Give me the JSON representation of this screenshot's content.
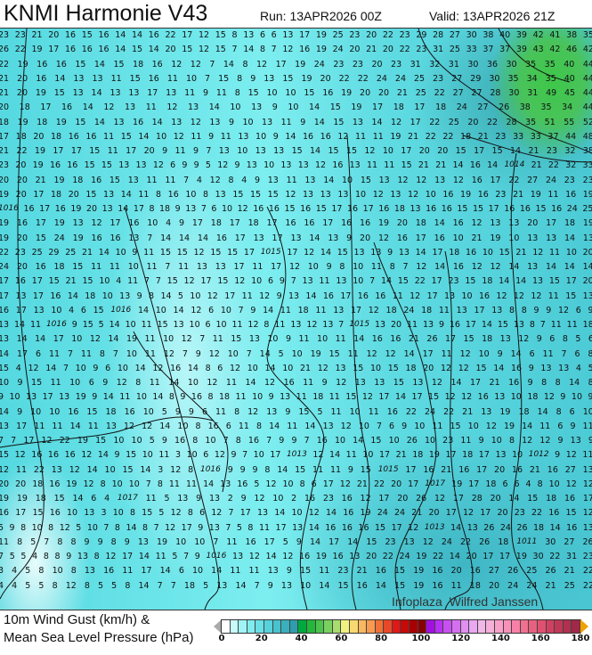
{
  "header": {
    "title": "KNMI Harmonie V43",
    "run": "Run: 13APR2026 00Z",
    "valid": "Valid: 13APR2026 21Z"
  },
  "legend": {
    "line1": "10m Wind Gust (km/h) &",
    "line2": "Mean Sea Level Pressure (hPa)",
    "ticks": [
      "0",
      "20",
      "40",
      "60",
      "80",
      "100",
      "120",
      "140",
      "160",
      "180"
    ],
    "colors": [
      "#ffffff",
      "#c8fbfb",
      "#a0f4f6",
      "#80ecf0",
      "#6ae0e6",
      "#58d2da",
      "#48c2cc",
      "#3ab0bc",
      "#2e9eac",
      "#00a840",
      "#22b83a",
      "#4ac44a",
      "#78d060",
      "#a8dc70",
      "#f0f080",
      "#f8d870",
      "#f8b860",
      "#f89a50",
      "#f07038",
      "#e84828",
      "#e01818",
      "#c80808",
      "#a80000",
      "#880000",
      "#a010e0",
      "#b830f0",
      "#c850f0",
      "#d470f0",
      "#e090f0",
      "#eaa8f0",
      "#f0b8e8",
      "#f4b0d8",
      "#f8a0c8",
      "#f890b8",
      "#f880a8",
      "#f07090",
      "#e86080",
      "#e05070",
      "#d04060",
      "#c03858",
      "#b03050",
      "#a02848"
    ],
    "under_color": "#aaaaaa",
    "over_color": "#f0a000"
  },
  "credit": "Infoplaza  Wilfred Janssen",
  "isobars": [
    "1015",
    "1016",
    "1016",
    "1016",
    "1016",
    "1017",
    "1015",
    "1014",
    "1013",
    "1015",
    "1017",
    "1012",
    "1011",
    "1016",
    "1013"
  ],
  "wind_gust_rows": [
    "23 23 21 20 16 15 16 14 14 16 22 17 12 15 8 13 6 6 13 17 19 25 23 20 22 23 29 28 27 30 38 40 39 42 41 38 35",
    "26 22 19 17 16 16 16 14 15 14 20 15 12 15 7 14 8 7 12 16 19 24 20 21 20 22 23 31 25 33 37 37 39 43 42 46 42",
    "22 19 16 16 15 14 15 18 16 12 12 7 14 8 12 17 19 24 23 23 20 23 31 32 31 30 36 30 35 35 40 44",
    "21 20 16 14 13 13 11 15 16 11 10 7 15 8 9 13 15 19 20 22 22 24 24 25 23 27 29 30 35 34 35 40 44",
    "21 20 19 15 13 14 13 13 17 13 11 9 11 8 15 10 10 15 16 19 20 20 21 25 22 27 27 28 30 31 49 45 44",
    "20 18 17 16 14 12 13 11 12 13 14 10 13 9 10 14 15 19 17 18 17 18 24 27 26 38 35 34 44",
    "18 19 18 19 15 14 13 16 14 13 12 13 9 10 13 11 9 14 15 13 14 12 17 22 25 20 22 28 35 51 55 52",
    "17 18 20 18 16 16 11 15 14 10 12 11 9 11 13 10 9 14 16 16 12 11 11 19 21 22 22 18 21 23 33 33 37 44 48",
    "21 22 19 17 17 15 11 17 20 9 11 9 7 13 10 13 13 15 14 15 15 12 10 17 20 20 15 17 15 14 21 23 32 38",
    "23 20 19 16 16 15 15 13 13 12 6 9 9 5 12 9 13 10 13 13 12 16 13 11 11 15 21 21 14 16 14 21 22 32 33",
    "20 20 21 19 18 16 15 13 11 11 7 4 12 8 4 9 13 11 13 14 10 15 13 12 12 13 12 16 17 22 27 24 23 23",
    "19 20 17 18 20 15 13 14 11 8 16 10 8 13 15 15 15 12 13 13 13 10 12 13 12 10 16 19 16 23 21 19 11 16 19",
    "16 17 16 19 20 13 14 17 8 18 9 13 7 6 10 12 16 16 15 16 15 17 16 17 16 18 13 16 16 15 15 17 16 16 15 16 24 25",
    "19 16 17 19 13 12 17 16 10 4 9 17 18 17 18 17 16 16 17 16 16 19 20 18 14 16 12 13 13 20 17 18 19",
    "19 20 15 24 19 16 16 13 7 14 14 14 16 17 13 17 13 14 13 9 20 12 16 17 16 10 21 19 10 13 13 14 13",
    "22 23 25 29 25 21 14 10 9 11 15 15 12 15 15 17 17 12 14 15 13 13 9 13 14 17 18 16 10 15 21 12 11 10 20",
    "24 20 16 18 15 11 11 10 11 7 11 13 13 17 11 17 12 10 9 8 10 11 8 7 12 14 16 12 12 14 13 14 14 14",
    "17 16 17 15 21 15 10 4 11 7 7 15 12 17 15 12 10 6 9 7 13 11 13 10 7 14 15 22 17 23 15 18 14 14 13 15 17 20",
    "17 13 17 16 14 18 10 13 9 8 14 5 10 12 17 11 12 9 13 14 16 17 16 16 11 12 17 13 10 16 12 12 12 11 15 13",
    "16 17 13 10 4 6 15 14 10 14 12 6 10 7 9 14 11 18 11 13 17 12 18 24 18 11 13 17 13 8 8 9 9 12 6 9",
    "13 14 11 9 15 5 14 10 11 15 13 10 6 10 11 12 8 11 13 12 13 7 13 20 11 13 9 16 17 14 15 13 8 7 11 11 18",
    "13 14 14 17 10 12 14 19 11 10 12 7 11 15 13 10 9 11 10 11 14 16 16 21 26 17 15 18 13 12 9 6 8 5 6",
    "14 17 6 11 7 11 8 7 10 11 12 7 9 12 10 7 14 5 10 19 15 11 12 12 14 17 11 12 10 9 14 6 11 7 6 8",
    "15 4 12 14 7 10 9 6 10 14 12 16 14 8 6 12 10 14 10 21 12 13 15 10 15 18 20 12 12 15 14 16 9 13 13 4 5",
    "10 9 15 11 10 6 9 12 8 11 14 10 12 11 14 12 16 11 9 12 13 13 15 13 12 14 17 21 16 9 8 8 14 8",
    "9 10 13 17 13 19 9 14 11 10 14 8 9 16 8 18 11 10 9 13 11 18 11 15 12 17 14 17 15 12 12 16 13 10 18 12 9 10 9",
    "14 9 10 10 16 15 18 16 10 5 9 9 6 11 8 12 13 9 15 5 11 10 11 16 22 24 22 21 13 19 18 14 8 6 10",
    "13 17 11 11 14 11 13 12 12 14 10 8 16 6 11 8 14 11 14 13 12 10 7 6 9 10 11 15 10 12 19 14 11 6 9 11",
    "7 7 17 12 22 19 15 10 10 5 9 16 8 10 7 8 16 7 9 9 7 16 10 14 15 10 26 10 23 11 9 10 8 12 12 9 13 9",
    "15 12 16 16 16 12 14 9 15 10 11 3 10 6 12 9 7 10 17 12 14 11 10 17 21 18 19 17 18 17 13 10 9 12 11",
    "12 11 22 13 12 14 10 15 14 3 12 8 9 9 9 8 14 15 11 11 9 15 17 16 21 16 17 20 16 21 16 27 13",
    "20 20 18 16 19 12 8 10 10 7 8 11 11 14 13 16 5 12 10 8 6 17 12 21 22 20 17 19 17 18 6 6 4 8 10 12 12",
    "19 19 18 15 14 6 4 11 5 13 9 13 2 9 12 10 2 16 23 16 12 17 20 26 12 17 28 20 14 15 18 16 17",
    "16 17 15 16 10 13 3 10 8 15 5 12 8 6 12 7 17 13 14 10 12 14 16 19 24 24 21 20 17 12 17 20 23 22 16 15 12",
    "5 9 8 10 8 12 5 10 7 8 14 8 7 12 17 9 13 7 5 8 11 17 13 14 16 16 16 15 17 12 14 13 26 24 26 18 14 16 13",
    "11 8 5 7 8 8 9 9 8 9 13 19 10 10 7 11 16 17 5 9 14 17 14 15 23 13 12 24 22 26 18 30 27 26",
    "7 5 5 4 8 8 9 13 8 12 17 14 11 5 7 9 13 12 14 12 16 19 16 13 20 22 24 19 22 14 20 17 17 19 30 22 31 23",
    "3 4 5 8 10 8 13 16 11 17 14 6 10 14 11 11 13 9 15 11 23 21 16 15 19 16 20 16 27 26 25 26 21 22",
    "4 4 5 5 8 12 8 5 5 8 14 7 7 18 5 13 14 7 9 13 10 14 15 16 14 15 19 16 11 18 20 24 24 21 25 22"
  ]
}
